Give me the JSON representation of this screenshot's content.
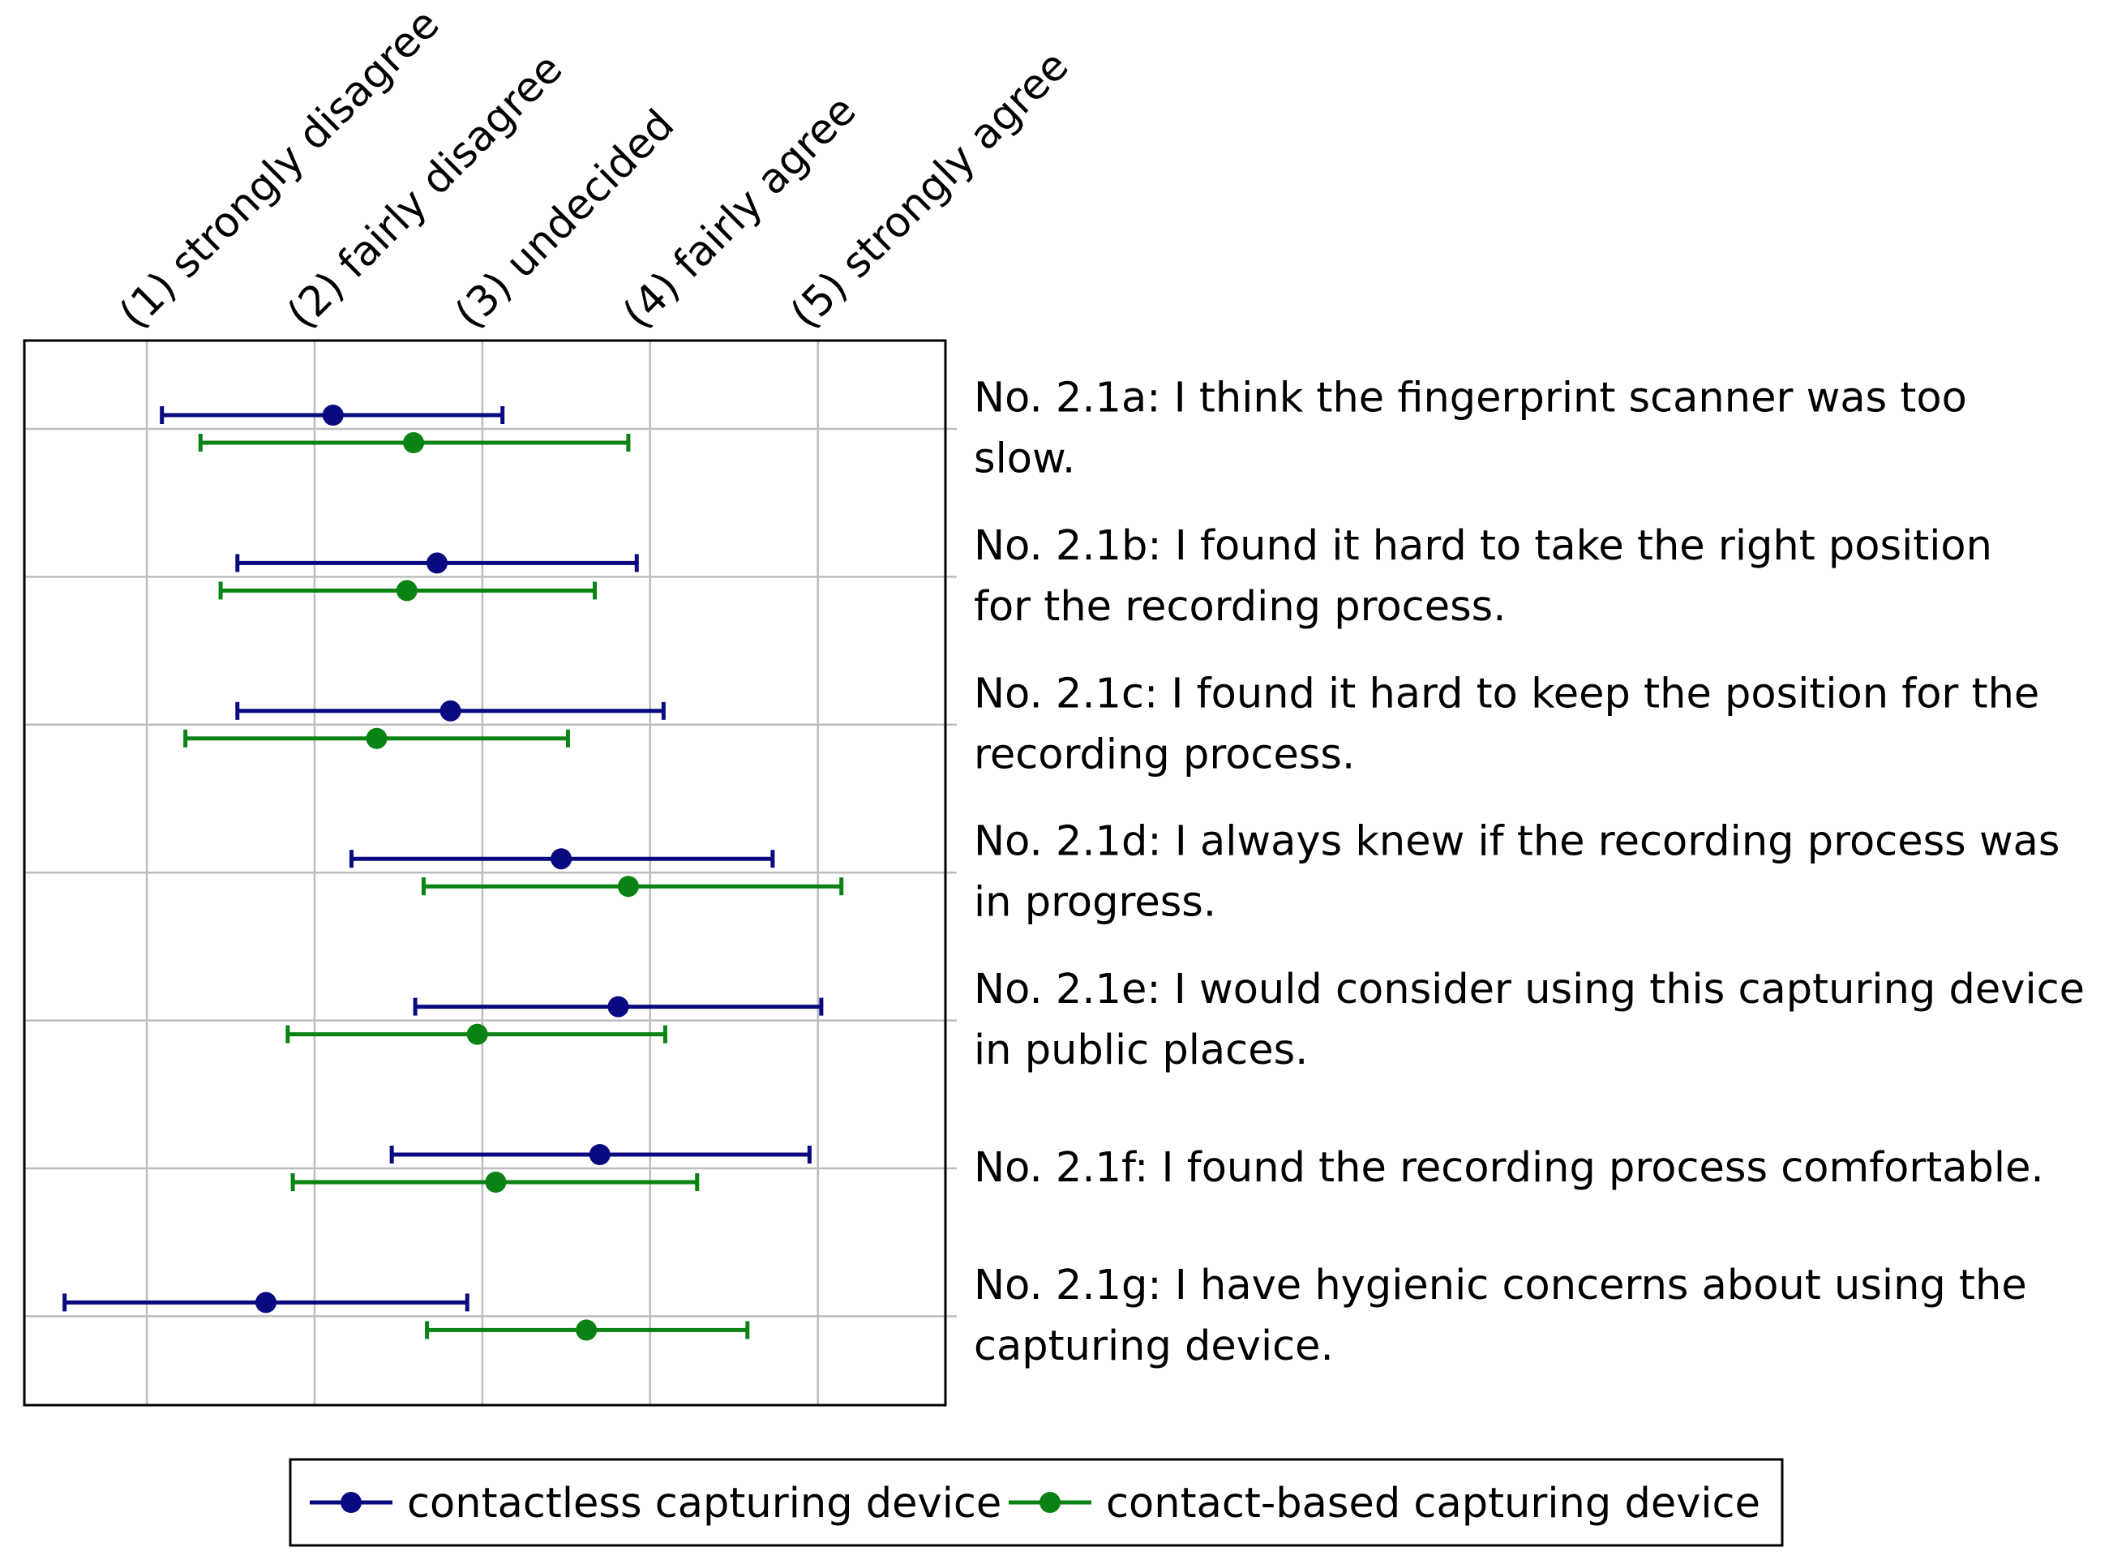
{
  "chart_data": {
    "type": "errorbar",
    "x_ticks": [
      {
        "value": 1,
        "label": "(1) strongly disagree"
      },
      {
        "value": 2,
        "label": "(2) fairly disagree"
      },
      {
        "value": 3,
        "label": "(3) undecided"
      },
      {
        "value": 4,
        "label": "(4) fairly agree"
      },
      {
        "value": 5,
        "label": "(5) strongly agree"
      }
    ],
    "xlim": [
      0.27,
      5.76
    ],
    "grid": true,
    "legend_position": "bottom",
    "questions": [
      {
        "lines": [
          "No. 2.1a: I think the fingerprint scanner was too",
          "slow."
        ]
      },
      {
        "lines": [
          "No. 2.1b: I found it hard to take the right position",
          "for the recording process."
        ]
      },
      {
        "lines": [
          "No. 2.1c: I found it hard to keep the position for the",
          "recording process."
        ]
      },
      {
        "lines": [
          "No. 2.1d: I always knew if the recording process was",
          "in progress."
        ]
      },
      {
        "lines": [
          "No. 2.1e: I would consider using this capturing device",
          "in public places."
        ]
      },
      {
        "lines": [
          "No. 2.1f: I found the recording process comfortable."
        ]
      },
      {
        "lines": [
          "No. 2.1g: I have hygienic concerns about using the",
          "capturing device."
        ]
      }
    ],
    "series": [
      {
        "name": "contactless capturing device",
        "color": "#0a0a80",
        "points": [
          {
            "mean": 2.11,
            "low": 1.09,
            "high": 3.12
          },
          {
            "mean": 2.73,
            "low": 1.54,
            "high": 3.92
          },
          {
            "mean": 2.81,
            "low": 1.54,
            "high": 4.08
          },
          {
            "mean": 3.47,
            "low": 2.22,
            "high": 4.73
          },
          {
            "mean": 3.81,
            "low": 2.6,
            "high": 5.02
          },
          {
            "mean": 3.7,
            "low": 2.46,
            "high": 4.95
          },
          {
            "mean": 1.71,
            "low": 0.51,
            "high": 2.91
          }
        ]
      },
      {
        "name": "contact-based capturing device",
        "color": "#0a8214",
        "points": [
          {
            "mean": 2.59,
            "low": 1.32,
            "high": 3.87
          },
          {
            "mean": 2.55,
            "low": 1.44,
            "high": 3.67
          },
          {
            "mean": 2.37,
            "low": 1.23,
            "high": 3.51
          },
          {
            "mean": 3.87,
            "low": 2.65,
            "high": 5.14
          },
          {
            "mean": 2.97,
            "low": 1.84,
            "high": 4.09
          },
          {
            "mean": 3.08,
            "low": 1.87,
            "high": 4.28
          },
          {
            "mean": 3.62,
            "low": 2.67,
            "high": 4.58
          }
        ]
      }
    ]
  }
}
